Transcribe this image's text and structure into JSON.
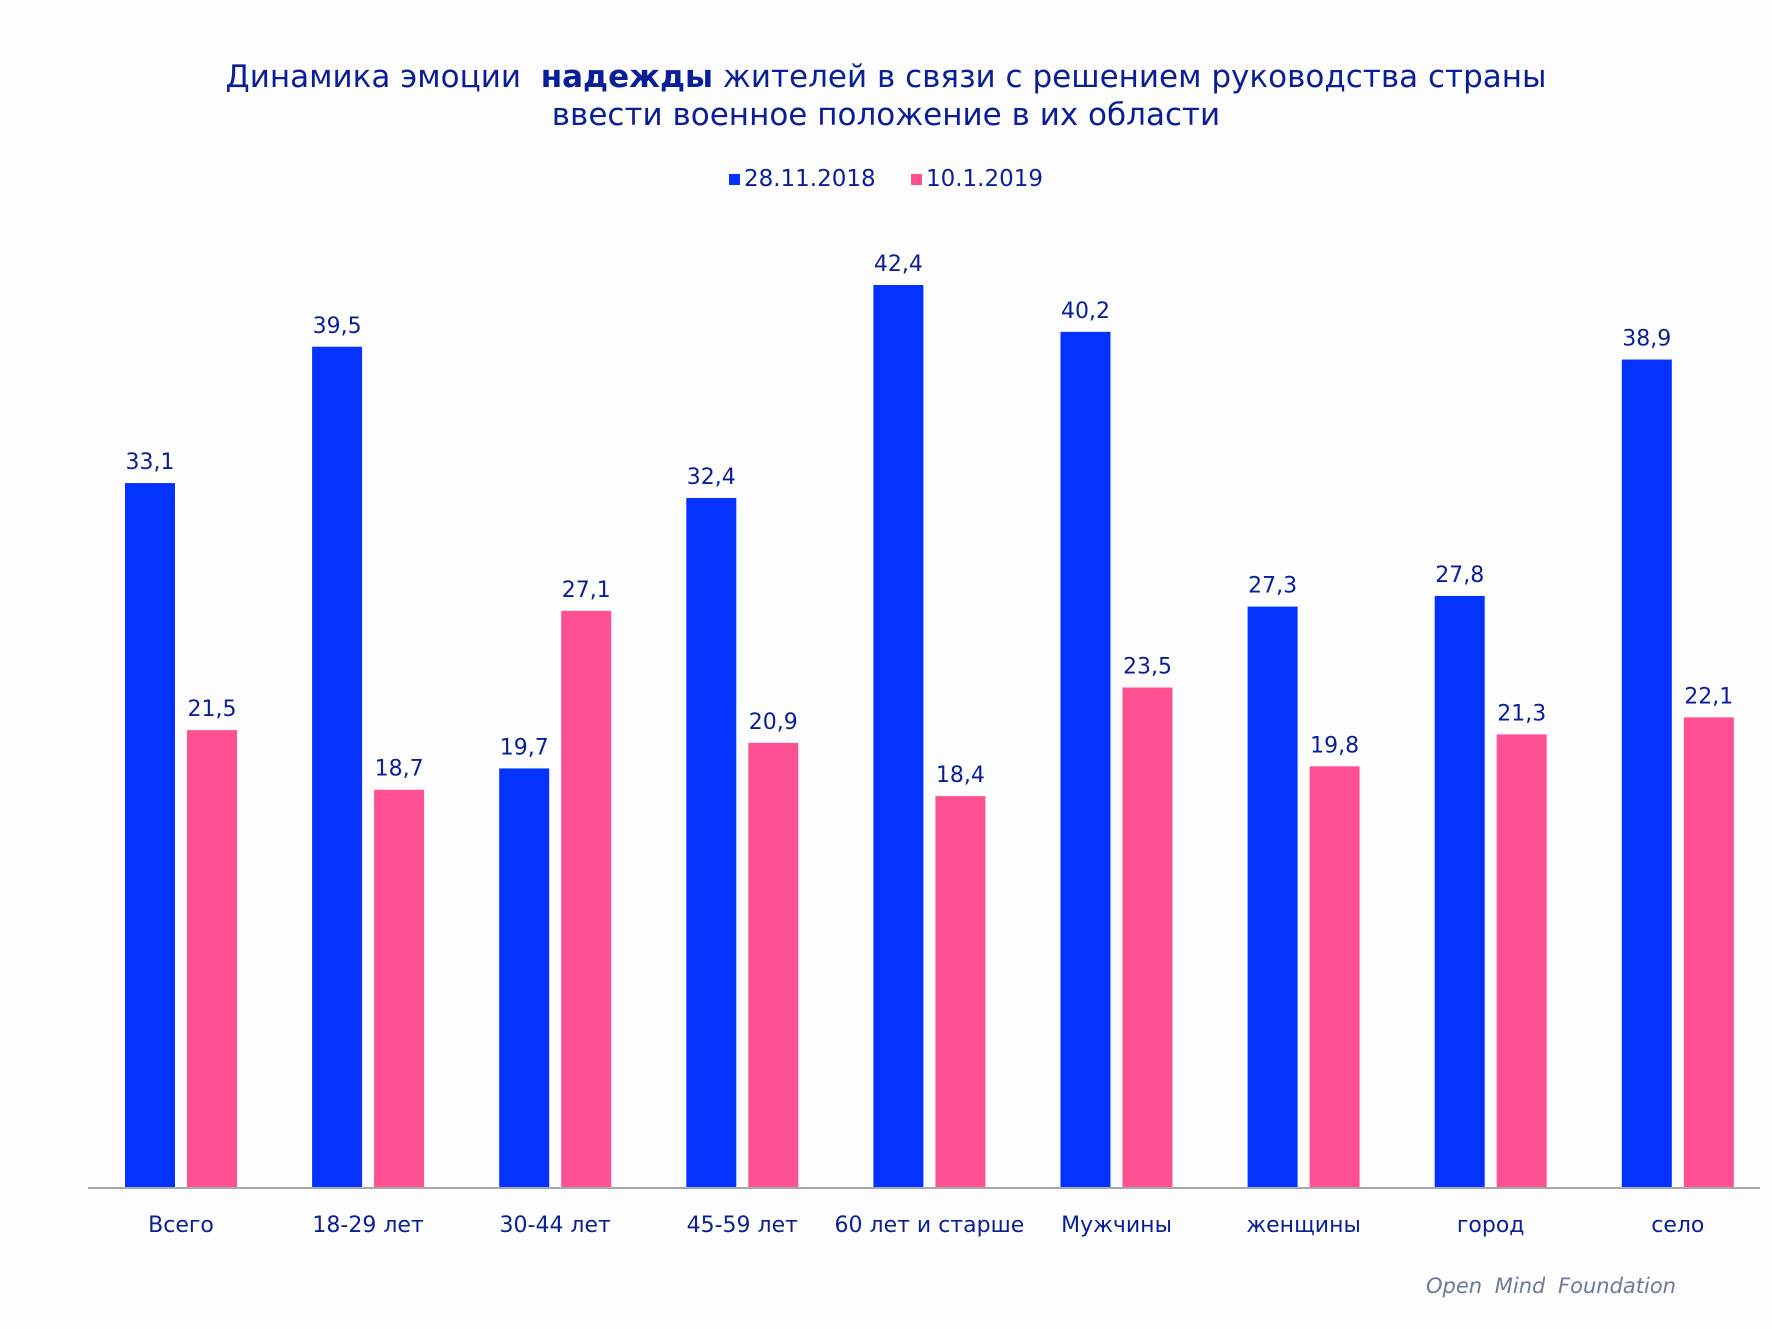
{
  "title": {
    "prefix": "Динамика эмоции",
    "bold": "надежды",
    "suffix": "жителей в связи с решением руководства страны",
    "line2": "ввести военное положение в их области"
  },
  "footer": "Open  Mind  Foundation",
  "chart_data": {
    "type": "bar",
    "title": "Динамика эмоции надежды жителей в связи с решением руководства страны ввести военное положение в их области",
    "xlabel": "",
    "ylabel": "",
    "ylim": [
      0,
      42.4
    ],
    "grid": false,
    "legend_position": "top-center",
    "categories": [
      "Всего",
      "18-29 лет",
      "30-44 лет",
      "45-59 лет",
      "60 лет и старше",
      "Мужчины",
      "женщины",
      "город",
      "село"
    ],
    "series": [
      {
        "name": "28.11.2018",
        "color": "#0433ff",
        "values": [
          33.1,
          39.5,
          19.7,
          32.4,
          42.4,
          40.2,
          27.3,
          27.8,
          38.9
        ],
        "labels": [
          "33,1",
          "39,5",
          "19,7",
          "32,4",
          "42,4",
          "40,2",
          "27,3",
          "27,8",
          "38,9"
        ]
      },
      {
        "name": "10.1.2019",
        "color": "#ff5093",
        "values": [
          21.5,
          18.7,
          27.1,
          20.9,
          18.4,
          23.5,
          19.8,
          21.3,
          22.1
        ],
        "labels": [
          "21,5",
          "18,7",
          "27,1",
          "20,9",
          "18,4",
          "23,5",
          "19,8",
          "21,3",
          "22,1"
        ]
      }
    ]
  }
}
